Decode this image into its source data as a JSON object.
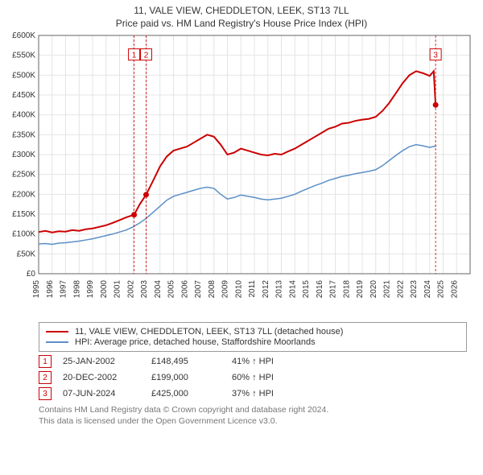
{
  "title_line1": "11, VALE VIEW, CHEDDLETON, LEEK, ST13 7LL",
  "title_line2": "Price paid vs. HM Land Registry's House Price Index (HPI)",
  "chart": {
    "type": "line",
    "plot_bg": "#ffffff",
    "grid_color": "#e4e4e4",
    "axis_color": "#666666",
    "xlim": [
      1995,
      2027
    ],
    "ylim": [
      0,
      600000
    ],
    "ytick_step": 50000,
    "yticks": [
      "£0",
      "£50K",
      "£100K",
      "£150K",
      "£200K",
      "£250K",
      "£300K",
      "£350K",
      "£400K",
      "£450K",
      "£500K",
      "£550K",
      "£600K"
    ],
    "xticks": [
      1995,
      1996,
      1997,
      1998,
      1999,
      2000,
      2001,
      2002,
      2003,
      2004,
      2005,
      2006,
      2007,
      2008,
      2009,
      2010,
      2011,
      2012,
      2013,
      2014,
      2015,
      2016,
      2017,
      2018,
      2019,
      2020,
      2021,
      2022,
      2023,
      2024,
      2025,
      2026
    ],
    "series": [
      {
        "name": "price_paid",
        "color": "#cc0000",
        "width": 2,
        "points": [
          [
            1995.0,
            105000
          ],
          [
            1995.5,
            108000
          ],
          [
            1996.0,
            104000
          ],
          [
            1996.5,
            107000
          ],
          [
            1997.0,
            106000
          ],
          [
            1997.5,
            110000
          ],
          [
            1998.0,
            108000
          ],
          [
            1998.5,
            112000
          ],
          [
            1999.0,
            114000
          ],
          [
            1999.5,
            118000
          ],
          [
            2000.0,
            122000
          ],
          [
            2000.5,
            128000
          ],
          [
            2001.0,
            135000
          ],
          [
            2001.5,
            142000
          ],
          [
            2002.08,
            148495
          ],
          [
            2002.5,
            175000
          ],
          [
            2002.97,
            199000
          ],
          [
            2003.5,
            235000
          ],
          [
            2004.0,
            270000
          ],
          [
            2004.5,
            295000
          ],
          [
            2005.0,
            310000
          ],
          [
            2005.5,
            315000
          ],
          [
            2006.0,
            320000
          ],
          [
            2006.5,
            330000
          ],
          [
            2007.0,
            340000
          ],
          [
            2007.5,
            350000
          ],
          [
            2008.0,
            345000
          ],
          [
            2008.5,
            325000
          ],
          [
            2009.0,
            300000
          ],
          [
            2009.5,
            305000
          ],
          [
            2010.0,
            315000
          ],
          [
            2010.5,
            310000
          ],
          [
            2011.0,
            305000
          ],
          [
            2011.5,
            300000
          ],
          [
            2012.0,
            298000
          ],
          [
            2012.5,
            302000
          ],
          [
            2013.0,
            300000
          ],
          [
            2013.5,
            308000
          ],
          [
            2014.0,
            315000
          ],
          [
            2014.5,
            325000
          ],
          [
            2015.0,
            335000
          ],
          [
            2015.5,
            345000
          ],
          [
            2016.0,
            355000
          ],
          [
            2016.5,
            365000
          ],
          [
            2017.0,
            370000
          ],
          [
            2017.5,
            378000
          ],
          [
            2018.0,
            380000
          ],
          [
            2018.5,
            385000
          ],
          [
            2019.0,
            388000
          ],
          [
            2019.5,
            390000
          ],
          [
            2020.0,
            395000
          ],
          [
            2020.5,
            410000
          ],
          [
            2021.0,
            430000
          ],
          [
            2021.5,
            455000
          ],
          [
            2022.0,
            480000
          ],
          [
            2022.5,
            500000
          ],
          [
            2023.0,
            510000
          ],
          [
            2023.5,
            505000
          ],
          [
            2024.0,
            498000
          ],
          [
            2024.3,
            510000
          ],
          [
            2024.44,
            425000
          ]
        ]
      },
      {
        "name": "hpi",
        "color": "#5b8fc7",
        "width": 1.5,
        "points": [
          [
            1995.0,
            75000
          ],
          [
            1995.5,
            76000
          ],
          [
            1996.0,
            74000
          ],
          [
            1996.5,
            77000
          ],
          [
            1997.0,
            78000
          ],
          [
            1997.5,
            80000
          ],
          [
            1998.0,
            82000
          ],
          [
            1998.5,
            85000
          ],
          [
            1999.0,
            88000
          ],
          [
            1999.5,
            92000
          ],
          [
            2000.0,
            96000
          ],
          [
            2000.5,
            100000
          ],
          [
            2001.0,
            105000
          ],
          [
            2001.5,
            110000
          ],
          [
            2002.0,
            118000
          ],
          [
            2002.5,
            128000
          ],
          [
            2003.0,
            140000
          ],
          [
            2003.5,
            155000
          ],
          [
            2004.0,
            170000
          ],
          [
            2004.5,
            185000
          ],
          [
            2005.0,
            195000
          ],
          [
            2005.5,
            200000
          ],
          [
            2006.0,
            205000
          ],
          [
            2006.5,
            210000
          ],
          [
            2007.0,
            215000
          ],
          [
            2007.5,
            218000
          ],
          [
            2008.0,
            215000
          ],
          [
            2008.5,
            200000
          ],
          [
            2009.0,
            188000
          ],
          [
            2009.5,
            192000
          ],
          [
            2010.0,
            198000
          ],
          [
            2010.5,
            195000
          ],
          [
            2011.0,
            192000
          ],
          [
            2011.5,
            188000
          ],
          [
            2012.0,
            186000
          ],
          [
            2012.5,
            188000
          ],
          [
            2013.0,
            190000
          ],
          [
            2013.5,
            195000
          ],
          [
            2014.0,
            200000
          ],
          [
            2014.5,
            208000
          ],
          [
            2015.0,
            215000
          ],
          [
            2015.5,
            222000
          ],
          [
            2016.0,
            228000
          ],
          [
            2016.5,
            235000
          ],
          [
            2017.0,
            240000
          ],
          [
            2017.5,
            245000
          ],
          [
            2018.0,
            248000
          ],
          [
            2018.5,
            252000
          ],
          [
            2019.0,
            255000
          ],
          [
            2019.5,
            258000
          ],
          [
            2020.0,
            262000
          ],
          [
            2020.5,
            272000
          ],
          [
            2021.0,
            285000
          ],
          [
            2021.5,
            298000
          ],
          [
            2022.0,
            310000
          ],
          [
            2022.5,
            320000
          ],
          [
            2023.0,
            325000
          ],
          [
            2023.5,
            322000
          ],
          [
            2024.0,
            318000
          ],
          [
            2024.5,
            322000
          ]
        ]
      }
    ],
    "markers": [
      {
        "n": "1",
        "x": 2002.08,
        "y": 148495,
        "label_y": 552000,
        "dot": true
      },
      {
        "n": "2",
        "x": 2002.97,
        "y": 199000,
        "label_y": 552000,
        "dot": true
      },
      {
        "n": "3",
        "x": 2024.44,
        "y": 425000,
        "label_y": 552000,
        "dot": true
      }
    ]
  },
  "legend": [
    {
      "color": "#cc0000",
      "label": "11, VALE VIEW, CHEDDLETON, LEEK, ST13 7LL (detached house)"
    },
    {
      "color": "#5b8fc7",
      "label": "HPI: Average price, detached house, Staffordshire Moorlands"
    }
  ],
  "notes": [
    {
      "n": "1",
      "date": "25-JAN-2002",
      "price": "£148,495",
      "pct": "41% ↑ HPI"
    },
    {
      "n": "2",
      "date": "20-DEC-2002",
      "price": "£199,000",
      "pct": "60% ↑ HPI"
    },
    {
      "n": "3",
      "date": "07-JUN-2024",
      "price": "£425,000",
      "pct": "37% ↑ HPI"
    }
  ],
  "license_line1": "Contains HM Land Registry data © Crown copyright and database right 2024.",
  "license_line2": "This data is licensed under the Open Government Licence v3.0."
}
